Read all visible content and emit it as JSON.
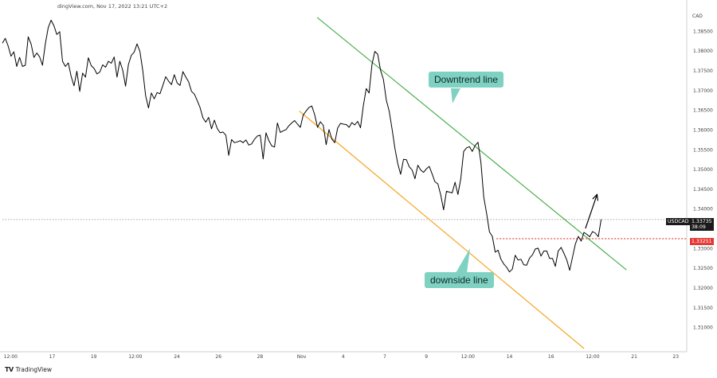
{
  "header": {
    "source_text": "dingView.com, Nov 17, 2022 13:21 UTC+2"
  },
  "currency_label": "CAD",
  "watermark": {
    "logo": "TV",
    "text": "TradingView"
  },
  "symbol_tag": {
    "symbol": "USDCAD",
    "price": "1.33735",
    "countdown": "38:09"
  },
  "support_tag": {
    "price": "1.33251"
  },
  "annotations": {
    "downtrend_label": "Downtrend line",
    "downside_label": "downside line"
  },
  "colors": {
    "price_line": "#000000",
    "downtrend": "#4caf50",
    "downside": "#f5a623",
    "support": "#e53935",
    "label_bg": "#7fd1c1",
    "symbol_tag_bg": "#1a1a1a",
    "support_tag_bg": "#e53935",
    "axis_text": "#444444"
  },
  "chart_data": {
    "type": "line",
    "symbol": "USDCAD",
    "ylim": [
      1.3043,
      1.3905
    ],
    "y_ticks": [
      "1.38500",
      "1.38000",
      "1.37500",
      "1.37000",
      "1.36500",
      "1.36000",
      "1.35500",
      "1.35000",
      "1.34500",
      "1.34000",
      "1.33500",
      "1.33000",
      "1.32500",
      "1.32000",
      "1.31500",
      "1.31000"
    ],
    "x_ticks": [
      "12:00",
      "17",
      "19",
      "12:00",
      "24",
      "26",
      "28",
      "Nov",
      "4",
      "7",
      "9",
      "12:00",
      "14",
      "16",
      "12:00",
      "21",
      "23"
    ],
    "last_price": 1.33735,
    "support_level": 1.33251,
    "series": [
      {
        "values": [
          1.382,
          1.3832,
          1.3813,
          1.3787,
          1.3798,
          1.3761,
          1.3784,
          1.3761,
          1.3764,
          1.3836,
          1.3818,
          1.3784,
          1.3795,
          1.3785,
          1.3764,
          1.3818,
          1.3859,
          1.3878,
          1.3864,
          1.3842,
          1.3849,
          1.3774,
          1.3761,
          1.377,
          1.3736,
          1.3712,
          1.3749,
          1.3698,
          1.3744,
          1.3734,
          1.3783,
          1.3763,
          1.3756,
          1.3742,
          1.3747,
          1.3765,
          1.3759,
          1.3774,
          1.3769,
          1.3785,
          1.3734,
          1.3774,
          1.3752,
          1.3711,
          1.3766,
          1.3789,
          1.3797,
          1.3818,
          1.3799,
          1.3751,
          1.3687,
          1.3656,
          1.3694,
          1.3679,
          1.3695,
          1.3692,
          1.3713,
          1.3735,
          1.3724,
          1.3715,
          1.374,
          1.3719,
          1.3713,
          1.3748,
          1.3734,
          1.3722,
          1.3698,
          1.3691,
          1.3675,
          1.3657,
          1.3631,
          1.362,
          1.3632,
          1.3603,
          1.3625,
          1.3604,
          1.3593,
          1.3595,
          1.3587,
          1.3536,
          1.3576,
          1.3568,
          1.357,
          1.3573,
          1.3568,
          1.3575,
          1.3562,
          1.3565,
          1.3577,
          1.3585,
          1.3587,
          1.3527,
          1.3593,
          1.3573,
          1.356,
          1.3557,
          1.3618,
          1.3594,
          1.3598,
          1.3601,
          1.3611,
          1.3618,
          1.3624,
          1.3615,
          1.3607,
          1.3638,
          1.3648,
          1.3657,
          1.3661,
          1.3639,
          1.3607,
          1.3621,
          1.3612,
          1.3563,
          1.3601,
          1.3577,
          1.3568,
          1.3605,
          1.3617,
          1.3615,
          1.3614,
          1.3607,
          1.3619,
          1.3613,
          1.3622,
          1.3606,
          1.3662,
          1.3705,
          1.3694,
          1.3766,
          1.3799,
          1.3792,
          1.3751,
          1.3728,
          1.3676,
          1.3648,
          1.3603,
          1.3554,
          1.3515,
          1.3488,
          1.3526,
          1.3525,
          1.3507,
          1.3499,
          1.3477,
          1.3511,
          1.3499,
          1.3493,
          1.3502,
          1.3508,
          1.3489,
          1.3469,
          1.3464,
          1.3436,
          1.3398,
          1.3445,
          1.3443,
          1.3441,
          1.3468,
          1.3437,
          1.3477,
          1.3546,
          1.3555,
          1.3558,
          1.3546,
          1.3561,
          1.3569,
          1.3519,
          1.3431,
          1.3389,
          1.3342,
          1.3331,
          1.3291,
          1.3296,
          1.3273,
          1.3261,
          1.3253,
          1.3241,
          1.3248,
          1.3283,
          1.3271,
          1.3273,
          1.3259,
          1.3258,
          1.3276,
          1.3284,
          1.3299,
          1.3301,
          1.3281,
          1.3294,
          1.3294,
          1.3275,
          1.3275,
          1.3255,
          1.3294,
          1.3303,
          1.3288,
          1.3271,
          1.3245,
          1.3279,
          1.3312,
          1.3331,
          1.3319,
          1.3341,
          1.3336,
          1.333,
          1.3343,
          1.3339,
          1.333,
          1.3374
        ]
      }
    ],
    "annotations": {
      "downtrend_line": {
        "from": [
          0.46,
          1.3885
        ],
        "to": [
          0.912,
          1.3246
        ]
      },
      "downside_line": {
        "from": [
          0.434,
          1.3648
        ],
        "to": [
          0.85,
          1.3047
        ]
      },
      "support_start": 0.722,
      "arrow": {
        "from": [
          0.852,
          1.3351
        ],
        "to": [
          0.869,
          1.3437
        ]
      }
    }
  }
}
